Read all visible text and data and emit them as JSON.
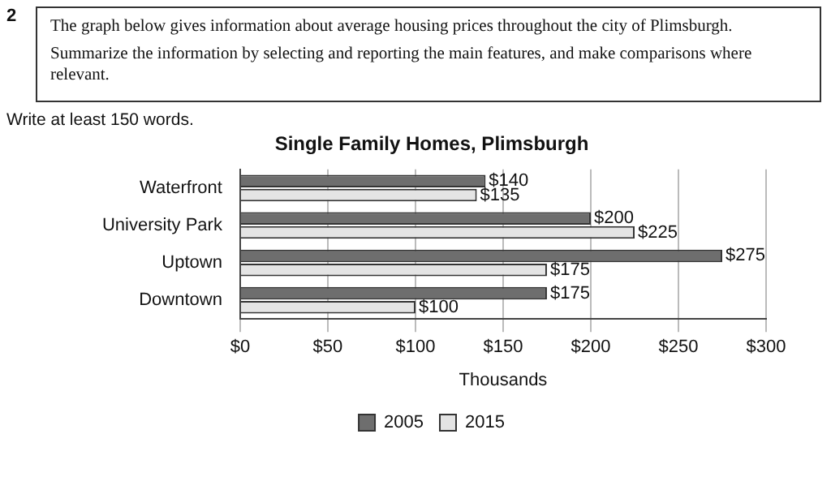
{
  "chart_data": {
    "type": "bar",
    "orientation": "horizontal",
    "title": "Single Family Homes, Plimsburgh",
    "xlabel": "Thousands",
    "annotations": [
      "2",
      "The graph below gives information about average housing prices throughout the city of Plimsburgh.",
      "Summarize the information by selecting and reporting the main features, and make comparisons where relevant.",
      "Write at least 150 words."
    ],
    "categories": [
      "Waterfront",
      "University Park",
      "Uptown",
      "Downtown"
    ],
    "series": [
      {
        "name": "2005",
        "color": "#6e6e6e",
        "values": [
          140,
          200,
          275,
          175
        ],
        "value_labels": [
          "$140",
          "$200",
          "$275",
          "$175"
        ]
      },
      {
        "name": "2015",
        "color": "#e4e4e4",
        "values": [
          135,
          225,
          175,
          100
        ],
        "value_labels": [
          "$135",
          "$225",
          "$175",
          "$100"
        ]
      }
    ],
    "xlim": [
      0,
      300
    ],
    "xticks": [
      {
        "value": 0,
        "label": "$0"
      },
      {
        "value": 50,
        "label": "$50"
      },
      {
        "value": 100,
        "label": "$100"
      },
      {
        "value": 150,
        "label": "$150"
      },
      {
        "value": 200,
        "label": "$200"
      },
      {
        "value": 250,
        "label": "$250"
      },
      {
        "value": 300,
        "label": "$300"
      }
    ],
    "grid": "x",
    "legend": "bottom"
  }
}
